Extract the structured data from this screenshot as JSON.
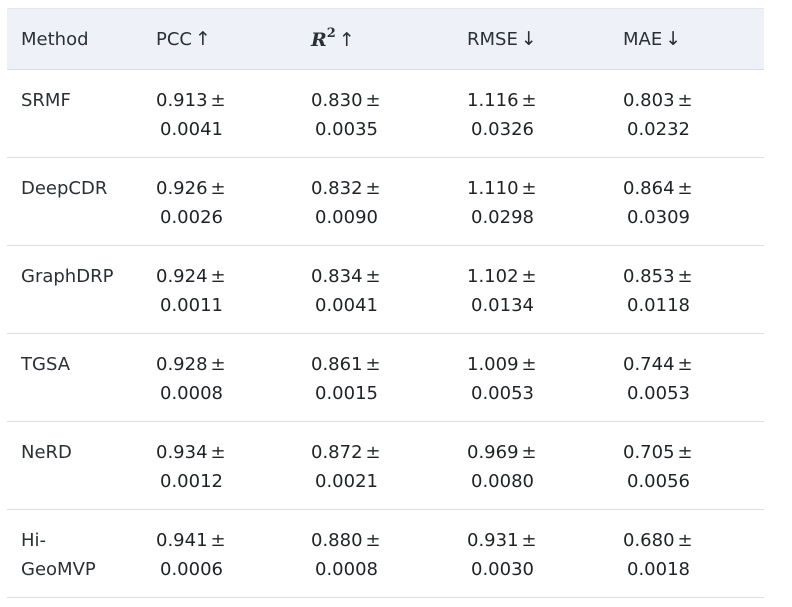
{
  "table": {
    "headers": [
      {
        "label": "Method",
        "arrow": ""
      },
      {
        "label": "PCC",
        "arrow": "↑"
      },
      {
        "label": "R",
        "sup": "2",
        "arrow": "↑"
      },
      {
        "label": "RMSE",
        "arrow": "↓"
      },
      {
        "label": "MAE",
        "arrow": "↓"
      }
    ],
    "plus_minus": "±",
    "rows": [
      {
        "method": "SRMF",
        "cells": [
          [
            "0.913",
            "0.0041"
          ],
          [
            "0.830",
            "0.0035"
          ],
          [
            "1.116",
            "0.0326"
          ],
          [
            "0.803",
            "0.0232"
          ]
        ]
      },
      {
        "method": "DeepCDR",
        "cells": [
          [
            "0.926",
            "0.0026"
          ],
          [
            "0.832",
            "0.0090"
          ],
          [
            "1.110",
            "0.0298"
          ],
          [
            "0.864",
            "0.0309"
          ]
        ]
      },
      {
        "method": "GraphDRP",
        "cells": [
          [
            "0.924",
            "0.0011"
          ],
          [
            "0.834",
            "0.0041"
          ],
          [
            "1.102",
            "0.0134"
          ],
          [
            "0.853",
            "0.0118"
          ]
        ]
      },
      {
        "method": "TGSA",
        "cells": [
          [
            "0.928",
            "0.0008"
          ],
          [
            "0.861",
            "0.0015"
          ],
          [
            "1.009",
            "0.0053"
          ],
          [
            "0.744",
            "0.0053"
          ]
        ]
      },
      {
        "method": "NeRD",
        "cells": [
          [
            "0.934",
            "0.0012"
          ],
          [
            "0.872",
            "0.0021"
          ],
          [
            "0.969",
            "0.0080"
          ],
          [
            "0.705",
            "0.0056"
          ]
        ]
      },
      {
        "method": "Hi-GeoMVP",
        "method_lines": [
          "Hi-",
          "GeoMVP"
        ],
        "cells": [
          [
            "0.941",
            "0.0006"
          ],
          [
            "0.880",
            "0.0008"
          ],
          [
            "0.931",
            "0.0030"
          ],
          [
            "0.680",
            "0.0018"
          ]
        ]
      }
    ]
  }
}
